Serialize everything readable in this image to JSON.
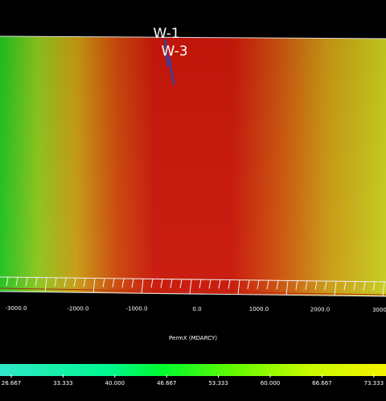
{
  "wells": [
    {
      "label": "W-1"
    },
    {
      "label": "W-3"
    }
  ],
  "axis": {
    "tick_labels": [
      "-3000.0",
      "-2000.0",
      "-1000.0",
      "0.0",
      "1000.0",
      "2000.0",
      "3000"
    ]
  },
  "colorbar": {
    "title": "PermX (MDARCY)",
    "tick_labels": [
      "26.667",
      "33.333",
      "40.000",
      "46.667",
      "53.333",
      "60.000",
      "66.667",
      "73.333"
    ]
  }
}
